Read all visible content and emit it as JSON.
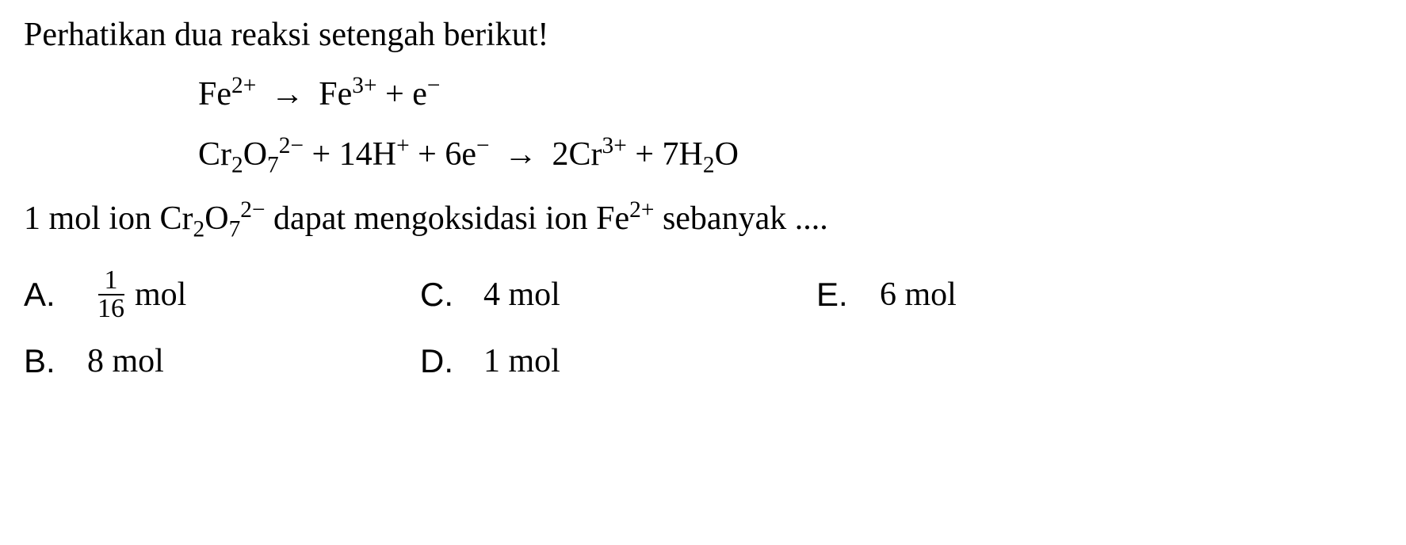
{
  "background_color": "#ffffff",
  "text_color": "#000000",
  "base_fontsize": 42,
  "sup_sub_fontsize": 29,
  "fraction_fontsize": 34,
  "font_family_text": "Georgia, Times New Roman, serif",
  "font_family_option_label": "Arial, Helvetica, sans-serif",
  "question": {
    "intro": "Perhatikan dua reaksi setengah berikut!",
    "subtext_prefix": "1 mol ion Cr",
    "subtext_cr_sub": "2",
    "subtext_o": "O",
    "subtext_o_sub": "7",
    "subtext_charge": "2−",
    "subtext_middle": " dapat mengoksidasi ion Fe",
    "subtext_fe_charge": "2+",
    "subtext_suffix": " sebanyak ...."
  },
  "equations": {
    "eq1": {
      "lhs_fe": "Fe",
      "lhs_fe_charge": "2+",
      "arrow": "→",
      "rhs_fe": "Fe",
      "rhs_fe_charge": "3+",
      "plus": " + e",
      "e_charge": "−"
    },
    "eq2": {
      "cr": "Cr",
      "cr_sub": "2",
      "o": "O",
      "o_sub": "7",
      "cr2o7_charge": "2−",
      "plus1": " + 14H",
      "h_charge": "+",
      "plus2": " + 6e",
      "e_charge": "−",
      "arrow": "→",
      "rhs_coef": " 2Cr",
      "rhs_cr_charge": "3+",
      "plus3": " + 7H",
      "h2_sub": "2",
      "o2": "O"
    }
  },
  "options": {
    "layout": "grid-3col",
    "items": [
      {
        "label": "A.",
        "type": "fraction",
        "num": "1",
        "den": "16",
        "unit": " mol"
      },
      {
        "label": "C.",
        "type": "plain",
        "value": "4 mol"
      },
      {
        "label": "E.",
        "type": "plain",
        "value": "6 mol"
      },
      {
        "label": "B.",
        "type": "plain",
        "value": "8 mol"
      },
      {
        "label": "D.",
        "type": "plain",
        "value": "1 mol"
      }
    ]
  }
}
